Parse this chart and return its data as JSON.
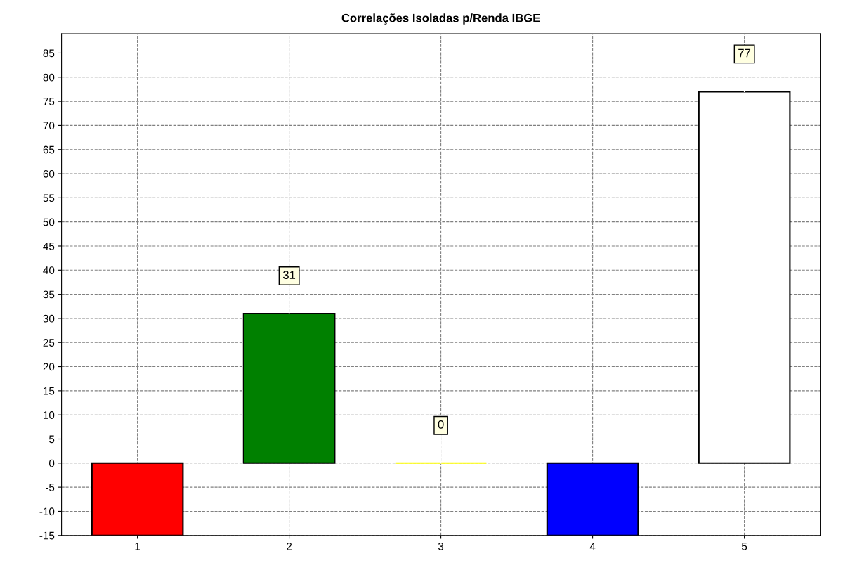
{
  "chart_data": {
    "type": "bar",
    "title": "Correlações Isoladas p/Renda IBGE",
    "categories": [
      "1",
      "2",
      "3",
      "4",
      "5"
    ],
    "values": [
      -15,
      31,
      0,
      -15,
      77
    ],
    "colors": [
      "#ff0000",
      "#008000",
      "#ffff00",
      "#0000ff",
      "#ffffff"
    ],
    "value_labels": [
      null,
      "31",
      "0",
      null,
      "77"
    ],
    "ylim": [
      -15,
      89
    ],
    "yticks": [
      -15,
      -10,
      -5,
      0,
      5,
      10,
      15,
      20,
      25,
      30,
      35,
      40,
      45,
      50,
      55,
      60,
      65,
      70,
      75,
      80,
      85
    ],
    "grid": true
  }
}
